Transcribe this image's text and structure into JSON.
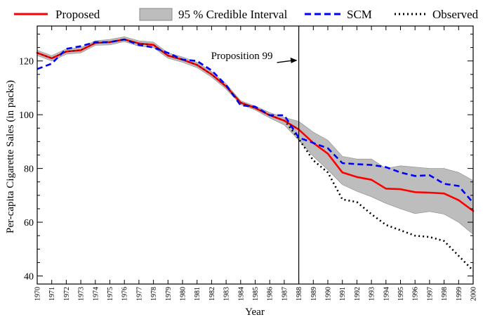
{
  "chart_data": {
    "type": "line",
    "title": "",
    "xlabel": "Year",
    "ylabel": "Per-capita Cigarette Sales (in packs)",
    "xlim": [
      1970,
      2000
    ],
    "ylim": [
      37,
      133
    ],
    "x_ticks": [
      "1970",
      "1971",
      "1972",
      "1973",
      "1974",
      "1975",
      "1976",
      "1977",
      "1978",
      "1979",
      "1980",
      "1981",
      "1982",
      "1983",
      "1984",
      "1985",
      "1986",
      "1987",
      "1988",
      "1989",
      "1990",
      "1991",
      "1992",
      "1993",
      "1994",
      "1995",
      "1996",
      "1997",
      "1998",
      "1999",
      "2000"
    ],
    "y_ticks": [
      40,
      60,
      80,
      100,
      120
    ],
    "legend": {
      "placement": "top",
      "entries": [
        {
          "label": "Proposed",
          "style": "solid",
          "color": "#ff0000"
        },
        {
          "label": "95 % Credible Interval",
          "style": "band",
          "color": "#bdbdbd"
        },
        {
          "label": "SCM",
          "style": "dashed",
          "color": "#0000ff"
        },
        {
          "label": "Observed",
          "style": "dotted",
          "color": "#000000"
        }
      ]
    },
    "x": [
      1970,
      1971,
      1972,
      1973,
      1974,
      1975,
      1976,
      1977,
      1978,
      1979,
      1980,
      1981,
      1982,
      1983,
      1984,
      1985,
      1986,
      1987,
      1988,
      1989,
      1990,
      1991,
      1992,
      1993,
      1994,
      1995,
      1996,
      1997,
      1998,
      1999,
      2000
    ],
    "series": [
      {
        "name": "Proposed",
        "values": [
          123.0,
          121.0,
          123.5,
          124.0,
          126.7,
          127.0,
          128.0,
          126.5,
          126.0,
          122.0,
          120.5,
          118.5,
          115.0,
          110.5,
          104.5,
          102.5,
          99.8,
          97.8,
          94.5,
          89.5,
          85.5,
          78.5,
          76.8,
          75.8,
          72.5,
          72.3,
          71.2,
          71.0,
          70.7,
          68.2,
          64.2
        ]
      },
      {
        "name": "SCM",
        "values": [
          117.0,
          119.0,
          124.5,
          125.5,
          127.0,
          127.0,
          128.0,
          126.0,
          125.0,
          123.0,
          120.5,
          120.0,
          116.5,
          111.0,
          103.5,
          103.0,
          99.8,
          99.8,
          91.5,
          89.5,
          87.5,
          82.0,
          81.6,
          81.3,
          80.5,
          78.5,
          77.2,
          77.5,
          74.3,
          73.5,
          67.2
        ]
      },
      {
        "name": "Observed",
        "values": [
          null,
          null,
          null,
          null,
          null,
          null,
          null,
          null,
          null,
          null,
          null,
          null,
          null,
          null,
          null,
          null,
          null,
          98.0,
          91.0,
          83.0,
          78.5,
          68.5,
          67.5,
          63.0,
          59.0,
          57.0,
          55.0,
          54.5,
          53.0,
          47.5,
          42.0
        ]
      }
    ],
    "interval": {
      "name": "95 % Credible Interval",
      "lower": [
        122.0,
        120.0,
        122.5,
        123.0,
        125.8,
        126.0,
        127.2,
        125.5,
        125.0,
        121.0,
        119.5,
        117.5,
        114.0,
        109.5,
        103.8,
        101.8,
        98.8,
        96.2,
        90.5,
        84.5,
        79.5,
        74.0,
        71.5,
        69.5,
        67.0,
        65.0,
        63.2,
        64.0,
        63.0,
        60.0,
        55.5
      ],
      "upper": [
        124.0,
        122.0,
        124.5,
        125.0,
        127.5,
        128.0,
        129.0,
        127.5,
        127.0,
        123.0,
        121.5,
        119.5,
        116.0,
        111.5,
        105.2,
        103.2,
        100.8,
        99.0,
        97.5,
        93.5,
        90.5,
        84.5,
        83.5,
        83.5,
        80.0,
        81.0,
        80.5,
        80.0,
        80.0,
        78.5,
        75.5
      ]
    },
    "annotation": {
      "text": "Proposition 99",
      "x": 1988,
      "y": 120.2
    }
  }
}
